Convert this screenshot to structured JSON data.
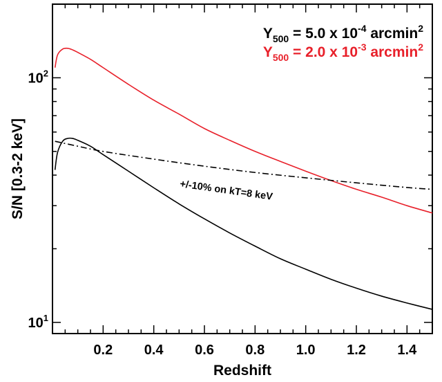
{
  "chart_data": {
    "type": "line",
    "title": "",
    "xlabel": "Redshift",
    "ylabel": "S/N [0.3-2 keV]",
    "xlim": [
      0.0,
      1.5
    ],
    "ylim": [
      9.0,
      200.0
    ],
    "yscale": "log",
    "grid": false,
    "legend_position": "top-right",
    "x_ticks": [
      {
        "value": 0.2,
        "label": "0.2"
      },
      {
        "value": 0.4,
        "label": "0.4"
      },
      {
        "value": 0.6,
        "label": "0.6"
      },
      {
        "value": 0.8,
        "label": "0.8"
      },
      {
        "value": 1.0,
        "label": "1.0"
      },
      {
        "value": 1.2,
        "label": "1.2"
      },
      {
        "value": 1.4,
        "label": "1.4"
      }
    ],
    "y_ticks": [
      {
        "value": 10,
        "base": "10",
        "exp": "1"
      },
      {
        "value": 100,
        "base": "10",
        "exp": "2"
      }
    ],
    "series": [
      {
        "id": "black",
        "legend": {
          "pre": "Y",
          "sub": "500",
          "mid": " = 5.0 x 10",
          "sup": "-4",
          "post": " arcmin",
          "sup2": "2"
        },
        "color": "#000000",
        "dash": "solid",
        "x": [
          0.01,
          0.02,
          0.04,
          0.06,
          0.08,
          0.1,
          0.15,
          0.2,
          0.3,
          0.4,
          0.5,
          0.6,
          0.7,
          0.8,
          0.9,
          1.0,
          1.1,
          1.2,
          1.3,
          1.4,
          1.5
        ],
        "y": [
          42,
          49.5,
          55,
          56.5,
          56.5,
          55.5,
          52.5,
          48.5,
          41.5,
          35.5,
          30.5,
          26.5,
          23.2,
          20.5,
          18.2,
          16.5,
          15.0,
          13.8,
          12.8,
          12.0,
          11.3
        ]
      },
      {
        "id": "red",
        "legend": {
          "pre": "Y",
          "sub": "500",
          "mid": " = 2.0 x 10",
          "sup": "-3",
          "post": " arcmin",
          "sup2": "2"
        },
        "color": "#e8202a",
        "dash": "solid",
        "x": [
          0.01,
          0.02,
          0.04,
          0.06,
          0.08,
          0.1,
          0.15,
          0.2,
          0.3,
          0.4,
          0.5,
          0.6,
          0.7,
          0.8,
          0.9,
          1.0,
          1.1,
          1.2,
          1.3,
          1.4,
          1.5
        ],
        "y": [
          110,
          124,
          131,
          132,
          130,
          127,
          119,
          110,
          94,
          81,
          71,
          62,
          55.5,
          50,
          45.5,
          41.5,
          38,
          35,
          32.5,
          30,
          28
        ]
      },
      {
        "id": "dashdot",
        "annotation": "+/-10% on kT=8 keV",
        "color": "#000000",
        "dash": "dashdot",
        "x": [
          0.01,
          0.1,
          0.2,
          0.4,
          0.6,
          0.8,
          1.0,
          1.2,
          1.4,
          1.5
        ],
        "y": [
          55,
          52.5,
          50.0,
          46.5,
          43.5,
          41.0,
          39.0,
          37.2,
          35.6,
          35.0
        ]
      }
    ]
  }
}
